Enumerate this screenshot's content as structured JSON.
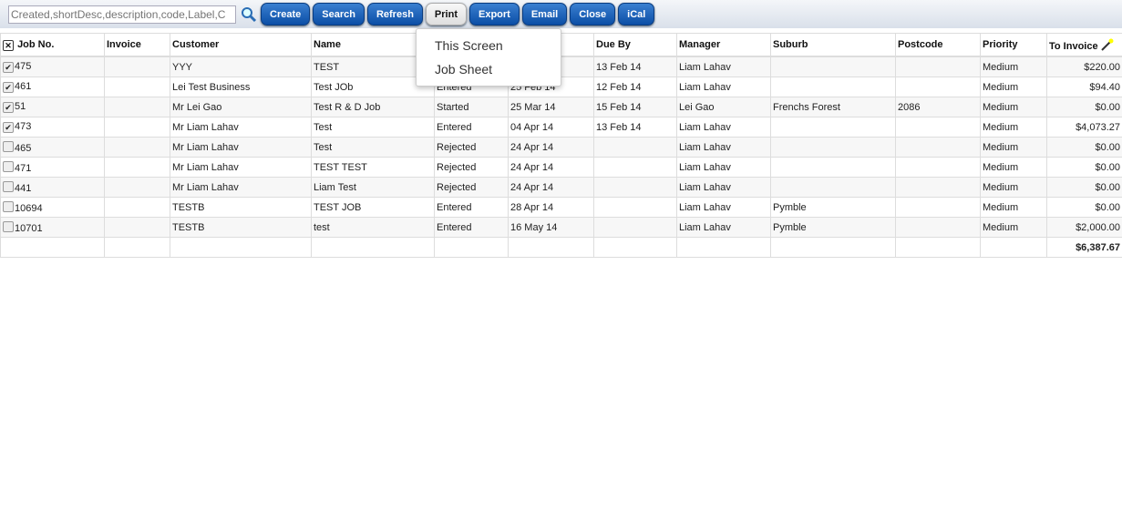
{
  "toolbar": {
    "search_placeholder": "Created,shortDesc,description,code,Label,C",
    "buttons": [
      "Create",
      "Search",
      "Refresh",
      "Print",
      "Export",
      "Email",
      "Close",
      "iCal"
    ],
    "active": "Print"
  },
  "print_menu": [
    "This Screen",
    "Job Sheet"
  ],
  "columns": [
    "Job No.",
    "Invoice",
    "Customer",
    "Name",
    "",
    "",
    "Due By",
    "Manager",
    "Suburb",
    "Postcode",
    "Priority",
    "To Invoice"
  ],
  "rows": [
    {
      "checked": true,
      "job": "475",
      "invoice": "",
      "customer": "YYY",
      "name": "TEST",
      "status": "",
      "date": "",
      "due": "13 Feb 14",
      "manager": "Liam Lahav",
      "suburb": "",
      "postcode": "",
      "priority": "Medium",
      "amount": "$220.00"
    },
    {
      "checked": true,
      "job": "461",
      "invoice": "",
      "customer": "Lei Test Business",
      "name": "Test JOb",
      "status": "Entered",
      "date": "25 Feb 14",
      "due": "12 Feb 14",
      "manager": "Liam Lahav",
      "suburb": "",
      "postcode": "",
      "priority": "Medium",
      "amount": "$94.40"
    },
    {
      "checked": true,
      "job": "51",
      "invoice": "",
      "customer": "Mr Lei Gao",
      "name": "Test R & D Job",
      "status": "Started",
      "date": "25 Mar 14",
      "due": "15 Feb 14",
      "manager": "Lei Gao",
      "suburb": "Frenchs Forest",
      "postcode": "2086",
      "priority": "Medium",
      "amount": "$0.00"
    },
    {
      "checked": true,
      "job": "473",
      "invoice": "",
      "customer": "Mr Liam Lahav",
      "name": "Test",
      "status": "Entered",
      "date": "04 Apr 14",
      "due": "13 Feb 14",
      "manager": "Liam Lahav",
      "suburb": "",
      "postcode": "",
      "priority": "Medium",
      "amount": "$4,073.27"
    },
    {
      "checked": false,
      "job": "465",
      "invoice": "",
      "customer": "Mr Liam Lahav",
      "name": "Test",
      "status": "Rejected",
      "date": "24 Apr 14",
      "due": "",
      "manager": "Liam Lahav",
      "suburb": "",
      "postcode": "",
      "priority": "Medium",
      "amount": "$0.00"
    },
    {
      "checked": false,
      "job": "471",
      "invoice": "",
      "customer": "Mr Liam Lahav",
      "name": "TEST TEST",
      "status": "Rejected",
      "date": "24 Apr 14",
      "due": "",
      "manager": "Liam Lahav",
      "suburb": "",
      "postcode": "",
      "priority": "Medium",
      "amount": "$0.00"
    },
    {
      "checked": false,
      "job": "441",
      "invoice": "",
      "customer": "Mr Liam Lahav",
      "name": "Liam Test",
      "status": "Rejected",
      "date": "24 Apr 14",
      "due": "",
      "manager": "Liam Lahav",
      "suburb": "",
      "postcode": "",
      "priority": "Medium",
      "amount": "$0.00"
    },
    {
      "checked": false,
      "job": "10694",
      "invoice": "",
      "customer": "TESTB",
      "name": "TEST JOB",
      "status": "Entered",
      "date": "28 Apr 14",
      "due": "",
      "manager": "Liam Lahav",
      "suburb": "Pymble",
      "postcode": "",
      "priority": "Medium",
      "amount": "$0.00"
    },
    {
      "checked": false,
      "job": "10701",
      "invoice": "",
      "customer": "TESTB",
      "name": "test",
      "status": "Entered",
      "date": "16 May 14",
      "due": "",
      "manager": "Liam Lahav",
      "suburb": "Pymble",
      "postcode": "",
      "priority": "Medium",
      "amount": "$2,000.00"
    }
  ],
  "total": "$6,387.67",
  "icons": {
    "search": "magnifier-icon",
    "select_all": "x-checkbox-icon",
    "columns": "magic-wand-icon"
  }
}
